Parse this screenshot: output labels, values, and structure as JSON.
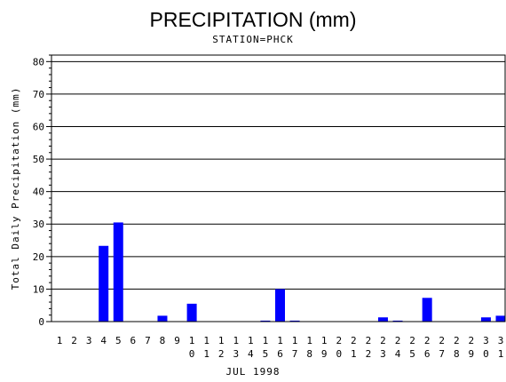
{
  "chart_data": {
    "type": "bar",
    "title": "PRECIPITATION (mm)",
    "subtitle": "STATION=PHCK",
    "xlabel": "JUL 1998",
    "ylabel": "Total Daily Precipitation (mm)",
    "ylim": [
      0,
      82
    ],
    "yticks": [
      0,
      10,
      20,
      30,
      40,
      50,
      60,
      70,
      80
    ],
    "grid": true,
    "categories": [
      "1",
      "2",
      "3",
      "4",
      "5",
      "6",
      "7",
      "8",
      "9",
      "10",
      "11",
      "12",
      "13",
      "14",
      "15",
      "16",
      "17",
      "18",
      "19",
      "20",
      "21",
      "22",
      "23",
      "24",
      "25",
      "26",
      "27",
      "28",
      "29",
      "30",
      "31"
    ],
    "values": [
      0,
      0,
      0,
      23.3,
      30.5,
      0,
      0,
      1.8,
      0,
      5.5,
      0,
      0,
      0,
      0,
      0.3,
      10.0,
      0.3,
      0,
      0,
      0,
      0,
      0,
      1.3,
      0.3,
      0,
      7.3,
      0,
      0,
      0,
      1.3,
      1.8
    ],
    "bar_color": "#0000ff"
  }
}
